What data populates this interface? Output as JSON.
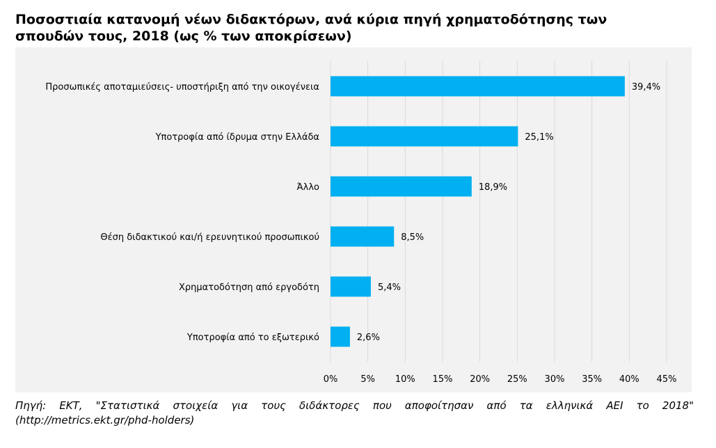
{
  "chart_data": {
    "type": "bar",
    "orientation": "horizontal",
    "title": "Ποσοστιαία κατανομή νέων διδακτόρων, ανά κύρια πηγή χρηματοδότησης των σπουδών τους, 2018 (ως % των αποκρίσεων)",
    "categories": [
      "Προσωπικές αποταμιεύσεις- υποστήριξη από την οικογένεια",
      "Υποτροφία από ίδρυμα στην Ελλάδα",
      "Άλλο",
      "Θέση διδακτικού και/ή ερευνητικού προσωπικού",
      "Χρηματοδότηση από εργοδότη",
      "Υποτροφία από το εξωτερικό"
    ],
    "values": [
      39.4,
      25.1,
      18.9,
      8.5,
      5.4,
      2.6
    ],
    "data_labels": [
      "39,4%",
      "25,1%",
      "18,9%",
      "8,5%",
      "5,4%",
      "2,6%"
    ],
    "x_ticks": [
      "0%",
      "5%",
      "10%",
      "15%",
      "20%",
      "25%",
      "30%",
      "35%",
      "40%",
      "45%"
    ],
    "xlim": [
      0,
      45
    ],
    "grid": "vertical",
    "legend": "none",
    "bar_color": "#00b0f0"
  },
  "header": {
    "title_line1": "Ποσοστιαία κατανομή νέων διδακτόρων, ανά κύρια πηγή χρηματοδότησης των",
    "title_line2": "σπουδών τους, 2018 (ως % των αποκρίσεων)"
  },
  "footer": {
    "source_line1": "Πηγή: ΕΚΤ, \"Στατιστικά στοιχεία για τους διδάκτορες που αποφοίτησαν από τα ελληνικά ΑΕΙ το 2018\"",
    "source_line2": "(http://metrics.ekt.gr/phd-holders)"
  },
  "colors": {
    "panel_background": "#f2f2f2",
    "gridline": "#d9d9d9",
    "bar": "#00b0f0"
  }
}
